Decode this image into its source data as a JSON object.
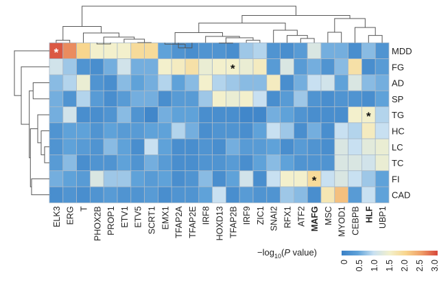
{
  "chart_data": {
    "type": "heatmap",
    "title": "",
    "columns": [
      "ELK3",
      "ERG",
      "T",
      "PHOX2B",
      "PROP1",
      "ETV1",
      "ETV5",
      "SCRT1",
      "EMX1",
      "TFAP2A",
      "TFAP2E",
      "IRF8",
      "HOXD13",
      "TFAP2B",
      "IRF9",
      "ZIC1",
      "SNAI2",
      "RFX1",
      "ATF2",
      "MAFG",
      "MSC",
      "MYOD1",
      "CEBPB",
      "HLF",
      "UBP1"
    ],
    "rows": [
      "MDD",
      "FG",
      "AD",
      "SP",
      "TG",
      "HC",
      "LC",
      "TC",
      "FI",
      "CAD"
    ],
    "highlighted_columns": {
      "MAFG": "#f0b878",
      "HLF": "#5fb846"
    },
    "values": [
      [
        2.9,
        2.6,
        2.0,
        1.5,
        1.5,
        1.5,
        1.9,
        1.9,
        0.5,
        0.3,
        0.2,
        0.3,
        0.3,
        0.2,
        0.8,
        0.9,
        0.3,
        0.2,
        0.4,
        1.2,
        0.6,
        0.6,
        0.2,
        0.7,
        0.3
      ],
      [
        1.1,
        0.8,
        0.3,
        0.2,
        0.6,
        1.1,
        0.6,
        0.6,
        1.5,
        1.6,
        1.8,
        1.4,
        1.5,
        1.5,
        1.4,
        1.6,
        0.4,
        1.2,
        0.4,
        0.6,
        0.3,
        0.7,
        1.8,
        0.2,
        0.4
      ],
      [
        0.7,
        0.9,
        1.4,
        0.3,
        0.2,
        0.7,
        0.5,
        0.6,
        0.9,
        0.5,
        0.7,
        1.5,
        0.9,
        0.8,
        0.7,
        0.7,
        1.6,
        0.2,
        0.6,
        1.0,
        1.1,
        0.5,
        1.2,
        0.7,
        0.6
      ],
      [
        0.6,
        0.3,
        0.9,
        0.4,
        0.2,
        0.4,
        0.6,
        0.6,
        0.2,
        0.4,
        0.4,
        0.8,
        1.5,
        1.4,
        1.5,
        1.0,
        0.2,
        0.4,
        0.8,
        0.3,
        0.2,
        0.3,
        0.3,
        0.2,
        0.5
      ],
      [
        0.6,
        1.1,
        0.2,
        0.2,
        0.3,
        0.7,
        0.3,
        0.1,
        0.6,
        0.5,
        0.5,
        0.2,
        0.2,
        0.2,
        0.1,
        0.1,
        0.6,
        0.5,
        0.3,
        0.2,
        0.2,
        0.2,
        1.5,
        1.5,
        0.9
      ],
      [
        0.3,
        0.5,
        0.5,
        0.3,
        0.5,
        0.4,
        0.4,
        0.5,
        0.5,
        0.9,
        0.6,
        0.2,
        0.3,
        0.3,
        0.2,
        0.5,
        1.0,
        0.8,
        0.2,
        0.6,
        0.2,
        1.0,
        0.9,
        1.6,
        1.0
      ],
      [
        0.3,
        0.5,
        0.4,
        0.3,
        0.7,
        0.5,
        0.2,
        1.0,
        0.5,
        0.2,
        0.2,
        0.3,
        0.2,
        0.6,
        0.4,
        0.4,
        0.5,
        0.2,
        0.4,
        0.3,
        0.2,
        1.2,
        1.0,
        1.3,
        1.4
      ],
      [
        0.4,
        0.7,
        0.2,
        0.3,
        0.3,
        0.5,
        0.3,
        0.6,
        0.4,
        0.2,
        0.2,
        0.3,
        0.3,
        0.4,
        0.2,
        0.5,
        0.7,
        0.5,
        0.3,
        0.3,
        0.3,
        1.2,
        1.2,
        1.1,
        1.4
      ],
      [
        0.6,
        0.5,
        0.4,
        1.2,
        0.8,
        0.8,
        0.5,
        0.4,
        0.5,
        0.2,
        0.3,
        0.7,
        0.2,
        0.5,
        1.1,
        0.2,
        1.0,
        1.5,
        1.5,
        1.9,
        1.0,
        1.2,
        1.0,
        0.8,
        0.5
      ],
      [
        0.2,
        0.3,
        0.2,
        0.3,
        0.4,
        0.3,
        0.3,
        0.4,
        0.2,
        0.3,
        0.3,
        0.5,
        1.0,
        0.2,
        0.4,
        0.3,
        0.3,
        0.8,
        0.7,
        0.2,
        1.7,
        2.2,
        0.4,
        1.0,
        0.5
      ]
    ],
    "significant": [
      {
        "row": "MDD",
        "column": "ELK3",
        "mark": "*"
      },
      {
        "row": "FG",
        "column": "TFAP2B",
        "mark": "*"
      },
      {
        "row": "TG",
        "column": "HLF",
        "mark": "*"
      },
      {
        "row": "FI",
        "column": "MAFG",
        "mark": "*"
      }
    ],
    "colorbar": {
      "label_prefix": "−log",
      "label_sub": "10",
      "label_open": "(",
      "label_italic": "P",
      "label_suffix": " value)",
      "range": [
        0,
        3.0
      ],
      "ticks": [
        "0",
        "0.5",
        "1.0",
        "1.5",
        "2.0",
        "2.5",
        "3.0"
      ],
      "colors": [
        "#3a80c6",
        "#5fa2d9",
        "#c8e0f1",
        "#f3f0cc",
        "#f8d68e",
        "#ef9e68",
        "#d6463a"
      ]
    },
    "column_dendrogram": true,
    "row_dendrogram": true
  }
}
